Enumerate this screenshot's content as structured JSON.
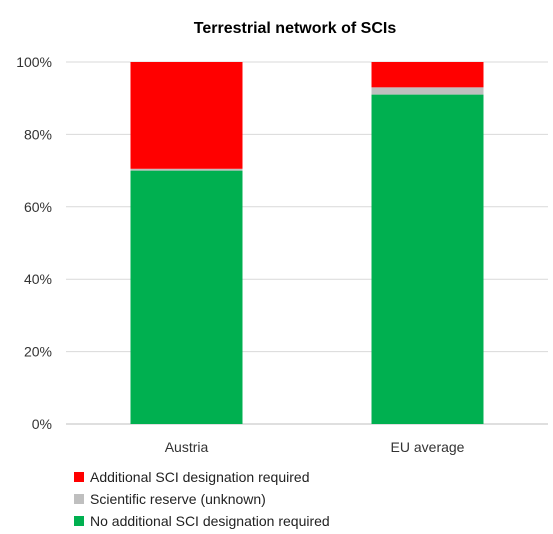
{
  "chart_data": {
    "type": "bar",
    "stacked": true,
    "title": "Terrestrial network of SCIs",
    "xlabel": "",
    "ylabel": "",
    "categories": [
      "Austria",
      "EU average"
    ],
    "ylim": [
      0,
      100
    ],
    "yticks": [
      0,
      20,
      40,
      60,
      80,
      100
    ],
    "ytick_labels": [
      "0%",
      "20%",
      "40%",
      "60%",
      "80%",
      "100%"
    ],
    "grid": true,
    "legend_position": "bottom-left",
    "series": [
      {
        "name": "No additional SCI designation required",
        "color": "#00b050",
        "values": [
          70,
          91
        ]
      },
      {
        "name": "Scientific reserve (unknown)",
        "color": "#bfbfbf",
        "values": [
          0.5,
          2
        ]
      },
      {
        "name": "Additional SCI designation required",
        "color": "#ff0000",
        "values": [
          29.5,
          7
        ]
      }
    ],
    "legend_order": [
      2,
      1,
      0
    ]
  }
}
